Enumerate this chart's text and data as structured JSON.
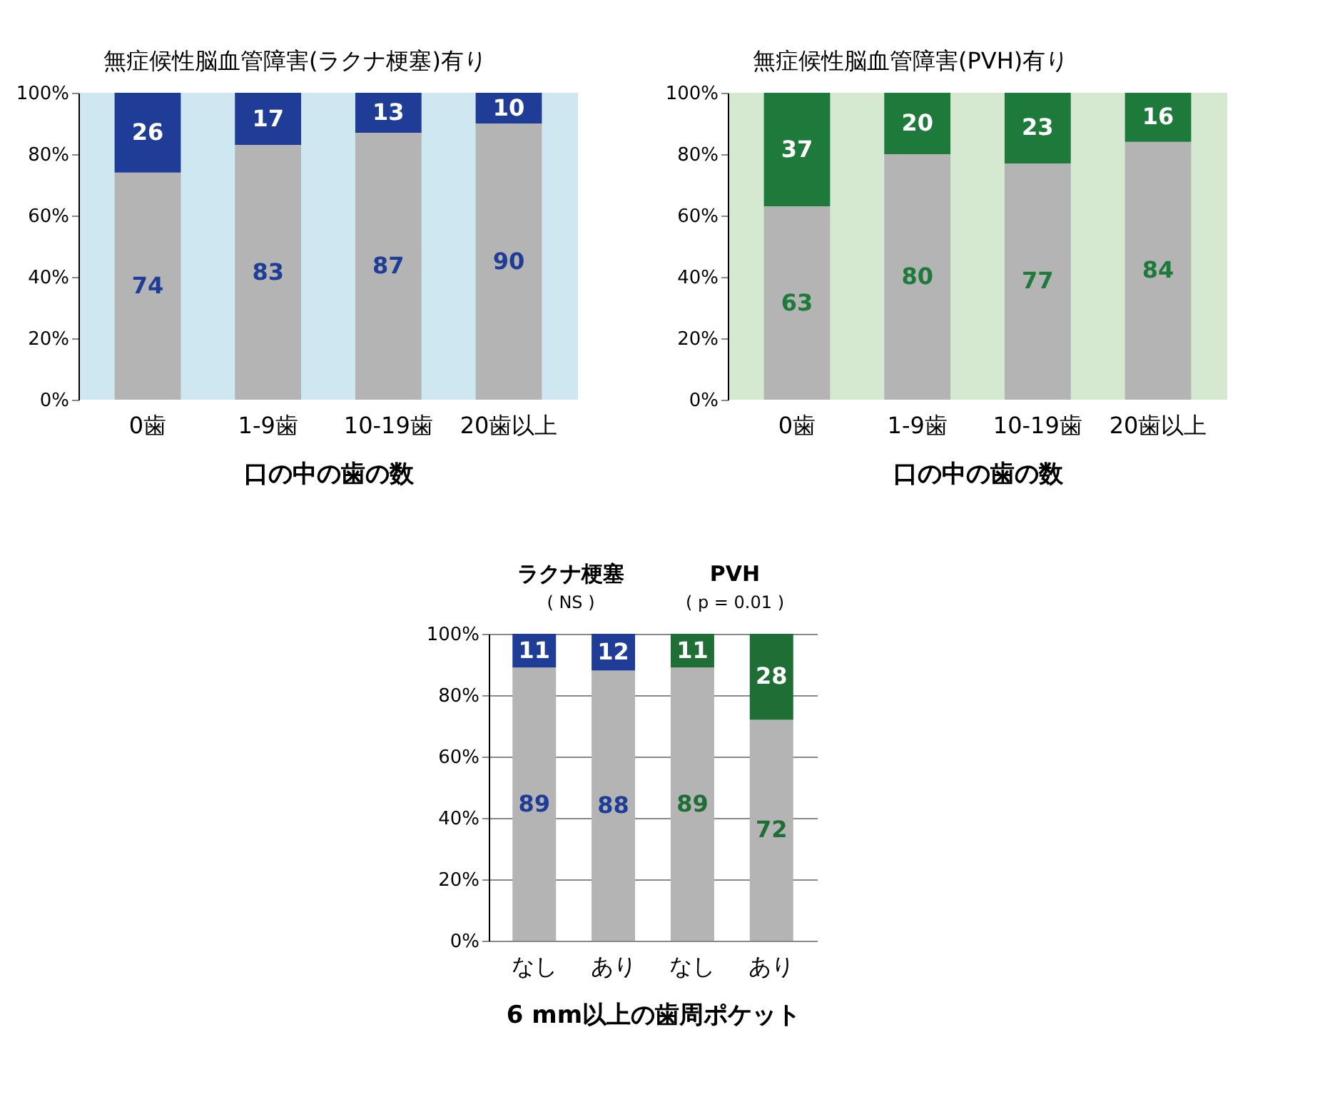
{
  "chart_data": [
    {
      "type": "bar",
      "stacked": true,
      "annotations": [
        "無症候性脳血管障害(ラクナ梗塞)有り"
      ],
      "xlabel": "口の中の歯の数",
      "categories": [
        "0歯",
        "1-9歯",
        "10-19歯",
        "20歯以上"
      ],
      "series": [
        {
          "color": "#b4b4b4",
          "values": [
            74,
            83,
            87,
            90
          ]
        },
        {
          "color": "#1f3c96",
          "values": [
            26,
            17,
            13,
            10
          ]
        }
      ],
      "ylim": [
        0,
        100
      ],
      "yticks": [
        {
          "value": 0,
          "label": "0%"
        },
        {
          "value": 20,
          "label": "20%"
        },
        {
          "value": 40,
          "label": "40%"
        },
        {
          "value": 60,
          "label": "60%"
        },
        {
          "value": 80,
          "label": "80%"
        },
        {
          "value": 100,
          "label": "100%"
        }
      ],
      "data_labels": true,
      "grid": false
    },
    {
      "type": "bar",
      "stacked": true,
      "annotations": [
        "無症候性脳血管障害(PVH)有り"
      ],
      "xlabel": "口の中の歯の数",
      "categories": [
        "0歯",
        "1-9歯",
        "10-19歯",
        "20歯以上"
      ],
      "series": [
        {
          "color": "#b4b4b4",
          "values": [
            63,
            80,
            77,
            84
          ]
        },
        {
          "color": "#1e7a3a",
          "values": [
            37,
            20,
            23,
            16
          ]
        }
      ],
      "ylim": [
        0,
        100
      ],
      "yticks": [
        {
          "value": 0,
          "label": "0%"
        },
        {
          "value": 20,
          "label": "20%"
        },
        {
          "value": 40,
          "label": "40%"
        },
        {
          "value": 60,
          "label": "60%"
        },
        {
          "value": 80,
          "label": "80%"
        },
        {
          "value": 100,
          "label": "100%"
        }
      ],
      "data_labels": true,
      "grid": false
    },
    {
      "type": "bar",
      "stacked": true,
      "annotations": [
        "ラクナ梗塞",
        "( NS )",
        "PVH",
        "( p = 0.01 )"
      ],
      "xlabel": "6 mm以上の歯周ポケット",
      "categories": [
        "なし",
        "あり",
        "なし",
        "あり"
      ],
      "series": [
        {
          "color": "#b4b4b4",
          "values": [
            89,
            88,
            89,
            72
          ]
        },
        {
          "colors": [
            "#1f3c96",
            "#1f3c96",
            "#1e6e35",
            "#1e6e35"
          ],
          "values": [
            11,
            12,
            11,
            28
          ]
        }
      ],
      "ylim": [
        0,
        100
      ],
      "yticks": [
        {
          "value": 0,
          "label": "0%"
        },
        {
          "value": 20,
          "label": "20%"
        },
        {
          "value": 40,
          "label": "40%"
        },
        {
          "value": 60,
          "label": "60%"
        },
        {
          "value": 80,
          "label": "80%"
        },
        {
          "value": 100,
          "label": "100%"
        }
      ],
      "data_labels": true,
      "grid": "y"
    }
  ]
}
